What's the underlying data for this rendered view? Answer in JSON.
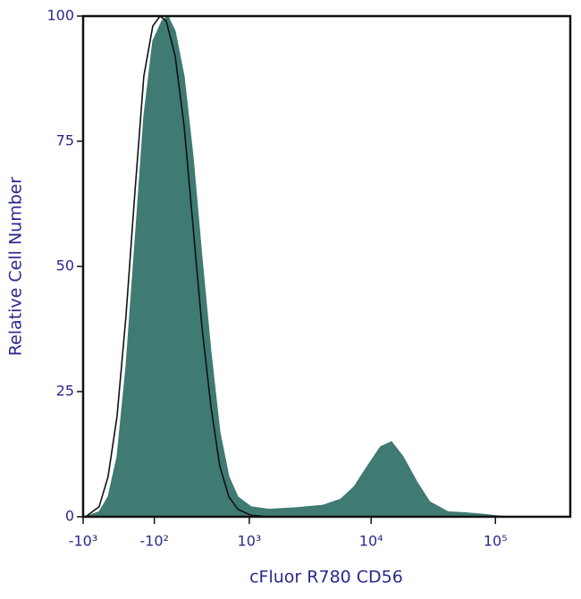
{
  "chart_data": {
    "type": "histogram-overlay",
    "xlabel": "cFluor R780 CD56",
    "ylabel": "Relative Cell Number",
    "xscale": "arcsinh",
    "xlim": [
      -1000,
      400000
    ],
    "ylim": [
      0,
      100
    ],
    "yticks": [
      0,
      25,
      50,
      75,
      100
    ],
    "xticks": [
      {
        "value": -1000,
        "label": "-10³"
      },
      {
        "value": -100,
        "label": "-10²"
      },
      {
        "value": 1000,
        "label": "10³"
      },
      {
        "value": 10000,
        "label": "10⁴"
      },
      {
        "value": 100000,
        "label": "10⁵"
      }
    ],
    "series": [
      {
        "color": "#3f7a73",
        "fill": true,
        "x": [
          -950,
          -715,
          -584,
          -469,
          -368,
          -275,
          -192,
          -113,
          -37,
          15,
          75,
          152,
          233,
          320,
          417,
          525,
          648,
          788,
          1035,
          1476,
          2460,
          4080,
          5670,
          7290,
          9270,
          11900,
          14600,
          18100,
          23300,
          29600,
          41600,
          57600,
          80500,
          103000,
          131000
        ],
        "values": [
          0,
          1,
          4,
          12,
          30,
          55,
          80,
          95,
          99,
          100,
          97,
          88,
          72,
          52,
          33,
          17,
          8,
          4,
          2,
          1.5,
          1.8,
          2.3,
          3.5,
          6,
          10,
          14,
          15,
          12,
          7,
          3,
          1,
          0.8,
          0.5,
          0.2,
          0
        ]
      },
      {
        "color": "#111111",
        "fill": false,
        "x": [
          -950,
          -715,
          -584,
          -469,
          -368,
          -275,
          -192,
          -113,
          -52,
          0,
          75,
          152,
          233,
          320,
          417,
          525,
          648,
          788,
          1035,
          1476
        ],
        "values": [
          0,
          2,
          8,
          20,
          40,
          65,
          88,
          98,
          100,
          99,
          92,
          78,
          58,
          38,
          22,
          10,
          4,
          1.5,
          0.3,
          0
        ]
      }
    ]
  }
}
